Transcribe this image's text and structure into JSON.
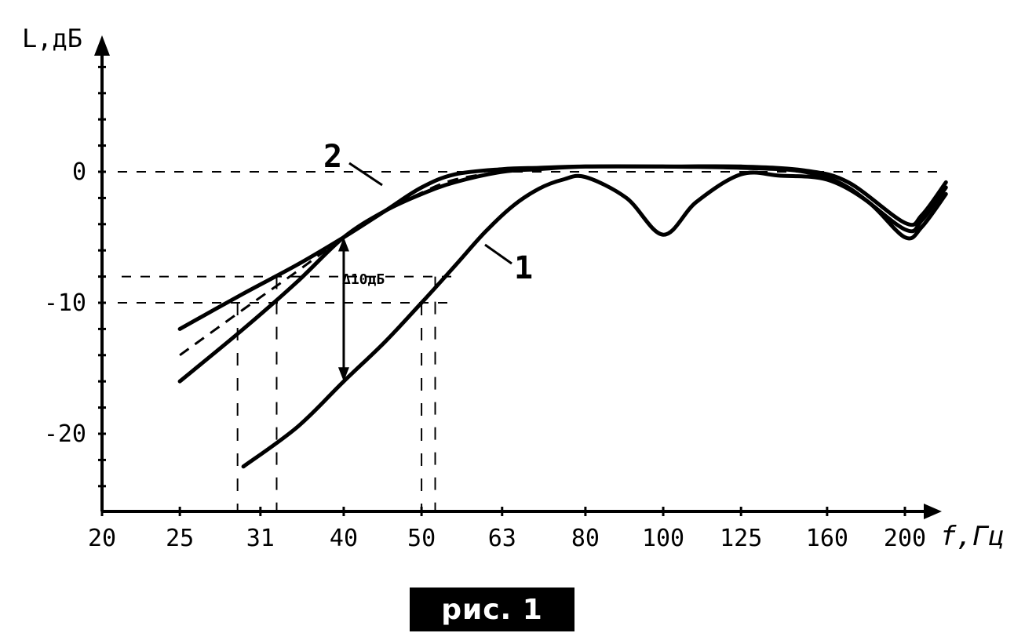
{
  "chart_data": {
    "type": "line",
    "ylabel": "L,дБ",
    "xlabel": "f,Гц",
    "x_scale": "log",
    "x_ticks": [
      "20",
      "25",
      "31",
      "40",
      "50",
      "63",
      "80",
      "100",
      "125",
      "160",
      "200"
    ],
    "y_ticks": [
      "0",
      "-10",
      "-20"
    ],
    "ylim": [
      -26,
      10
    ],
    "series": [
      {
        "name": "1",
        "x": [
          30,
          35,
          40,
          45,
          50,
          55,
          60,
          65,
          70,
          75,
          80,
          90,
          100,
          110,
          125,
          140,
          160,
          180,
          200,
          210,
          225
        ],
        "y": [
          -22.5,
          -19.5,
          -16,
          -13,
          -10,
          -7.2,
          -4.6,
          -2.6,
          -1.3,
          -0.6,
          -0.4,
          -2,
          -4.8,
          -2.3,
          -0.2,
          -0.3,
          -0.6,
          -2.3,
          -5,
          -4.2,
          -1.7
        ]
      },
      {
        "name": "2",
        "x": [
          25,
          30,
          35,
          40,
          45,
          50,
          55,
          63,
          70,
          80,
          100,
          125,
          150,
          170,
          200,
          210,
          225
        ],
        "y": [
          -16,
          -12,
          -8.4,
          -5,
          -3,
          -1.7,
          -0.8,
          0,
          0.2,
          0.4,
          0.4,
          0.3,
          0,
          -1.2,
          -4.4,
          -3.7,
          -1.2
        ]
      },
      {
        "x": [
          25,
          30,
          35,
          40,
          45,
          50,
          55,
          63,
          70,
          80,
          100,
          125,
          150,
          170,
          200,
          210,
          225
        ],
        "y": [
          -12,
          -9.3,
          -7.1,
          -5,
          -3,
          -1.2,
          -0.2,
          0.2,
          0.3,
          0.4,
          0.4,
          0.4,
          0.1,
          -0.8,
          -3.9,
          -3.3,
          -0.8
        ]
      },
      {
        "style": "dashed",
        "x": [
          25,
          30,
          35,
          40,
          45,
          50,
          55,
          63,
          70
        ],
        "y": [
          -14,
          -10.5,
          -7.6,
          -5,
          -3,
          -1.6,
          -0.6,
          0,
          0.2
        ]
      }
    ],
    "annotations": [
      "2",
      "1",
      "Δ10дБ"
    ],
    "reference_levels": [
      0,
      -8,
      -10
    ],
    "reference_freqs": [
      29.5,
      33,
      50,
      52
    ],
    "delta_arrow": {
      "x": 40,
      "y_from": -5,
      "y_to": -16
    }
  },
  "caption": "рис. 1"
}
